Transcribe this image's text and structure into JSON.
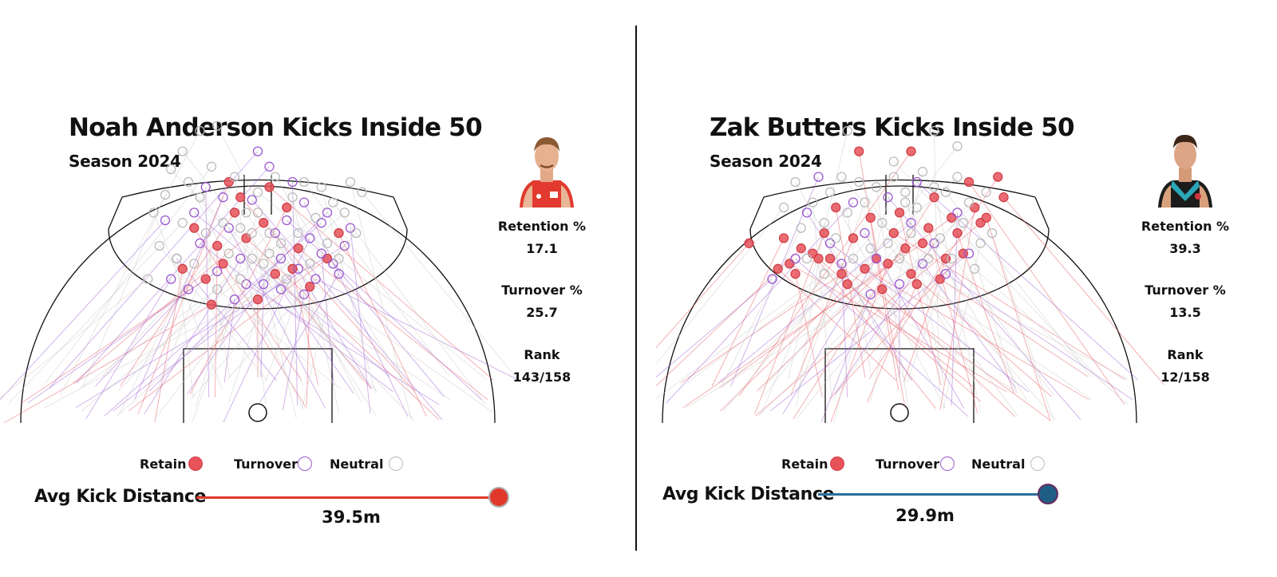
{
  "chart_data": [
    {
      "type": "scatter",
      "title": "Noah Anderson Kicks Inside 50",
      "subtitle": "Season 2024",
      "stats": [
        {
          "label": "Retention %",
          "value": "17.1"
        },
        {
          "label": "Turnover %",
          "value": "25.7"
        },
        {
          "label": "Rank",
          "value": "143/158"
        }
      ],
      "legend": [
        {
          "label": "Retain",
          "color": "#e8525a"
        },
        {
          "label": "Turnover",
          "color": "#9b59d0"
        },
        {
          "label": "Neutral",
          "color": "#bbbbbb"
        }
      ],
      "avg_kick_distance": {
        "label": "Avg Kick Distance",
        "value_m": 39.5,
        "display": "39.5m",
        "color": "#e0392b"
      },
      "series": [
        {
          "name": "Retain",
          "points": [
            [
              -8,
              12
            ],
            [
              -6,
              28
            ],
            [
              -4,
              48
            ],
            [
              -3,
              54
            ],
            [
              -7,
              35
            ],
            [
              -9,
              22
            ],
            [
              -11,
              42
            ],
            [
              -5,
              60
            ],
            [
              -2,
              38
            ],
            [
              0,
              14
            ],
            [
              1,
              44
            ],
            [
              3,
              24
            ],
            [
              5,
              50
            ],
            [
              7,
              34
            ],
            [
              9,
              19
            ],
            [
              12,
              30
            ],
            [
              14,
              40
            ],
            [
              -13,
              26
            ],
            [
              2,
              58
            ],
            [
              6,
              26
            ]
          ]
        },
        {
          "name": "Turnover",
          "points": [
            [
              -16,
              45
            ],
            [
              -14,
              30
            ],
            [
              -12,
              18
            ],
            [
              -10,
              36
            ],
            [
              -9,
              58
            ],
            [
              -7,
              25
            ],
            [
              -5,
              42
            ],
            [
              -3,
              30
            ],
            [
              -1,
              53
            ],
            [
              1,
              20
            ],
            [
              2,
              66
            ],
            [
              3,
              40
            ],
            [
              4,
              30
            ],
            [
              5,
              45
            ],
            [
              6,
              60
            ],
            [
              7,
              26
            ],
            [
              8,
              52
            ],
            [
              9,
              38
            ],
            [
              10,
              22
            ],
            [
              11,
              32
            ],
            [
              12,
              48
            ],
            [
              13,
              28
            ],
            [
              14,
              24
            ],
            [
              15,
              35
            ],
            [
              16,
              42
            ],
            [
              -15,
              22
            ],
            [
              -11,
              48
            ],
            [
              -4,
              14
            ],
            [
              0,
              72
            ],
            [
              4,
              18
            ],
            [
              -6,
              54
            ],
            [
              -2,
              20
            ],
            [
              8,
              16
            ],
            [
              11,
              44
            ]
          ]
        },
        {
          "name": "Neutral",
          "points": [
            [
              -19,
              22
            ],
            [
              -17,
              35
            ],
            [
              -16,
              55
            ],
            [
              -15,
              65
            ],
            [
              -14,
              30
            ],
            [
              -13,
              44
            ],
            [
              -12,
              60
            ],
            [
              -11,
              28
            ],
            [
              -10,
              54
            ],
            [
              -9,
              40
            ],
            [
              -8,
              66
            ],
            [
              -7,
              18
            ],
            [
              -6,
              44
            ],
            [
              -5,
              32
            ],
            [
              -4,
              62
            ],
            [
              -3,
              22
            ],
            [
              -2,
              48
            ],
            [
              -1,
              30
            ],
            [
              0,
              56
            ],
            [
              1,
              28
            ],
            [
              2,
              40
            ],
            [
              3,
              62
            ],
            [
              4,
              36
            ],
            [
              5,
              22
            ],
            [
              6,
              54
            ],
            [
              7,
              40
            ],
            [
              8,
              60
            ],
            [
              9,
              28
            ],
            [
              10,
              46
            ],
            [
              11,
              58
            ],
            [
              12,
              36
            ],
            [
              13,
              52
            ],
            [
              14,
              30
            ],
            [
              15,
              48
            ],
            [
              16,
              60
            ],
            [
              17,
              40
            ],
            [
              18,
              56
            ],
            [
              -18,
              48
            ],
            [
              -10,
              80
            ],
            [
              -7,
              82
            ],
            [
              0,
              48
            ],
            [
              2,
              32
            ],
            [
              -1,
              40
            ],
            [
              -3,
              42
            ],
            [
              -13,
              72
            ]
          ]
        }
      ]
    },
    {
      "type": "scatter",
      "title": "Zak Butters Kicks Inside 50",
      "subtitle": "Season 2024",
      "stats": [
        {
          "label": "Retention %",
          "value": "39.3"
        },
        {
          "label": "Turnover %",
          "value": "13.5"
        },
        {
          "label": "Rank",
          "value": "12/158"
        }
      ],
      "legend": [
        {
          "label": "Retain",
          "color": "#e8525a"
        },
        {
          "label": "Turnover",
          "color": "#9b59d0"
        },
        {
          "label": "Neutral",
          "color": "#bbbbbb"
        }
      ],
      "avg_kick_distance": {
        "label": "Avg Kick Distance",
        "value_m": 29.9,
        "display": "29.9m",
        "color": "#1f5f86"
      },
      "series": [
        {
          "name": "Retain",
          "points": [
            [
              -26,
              36
            ],
            [
              -21,
              26
            ],
            [
              -20,
              38
            ],
            [
              -19,
              28
            ],
            [
              -18,
              24
            ],
            [
              -17,
              34
            ],
            [
              -15,
              32
            ],
            [
              -13,
              40
            ],
            [
              -12,
              30
            ],
            [
              -11,
              50
            ],
            [
              -10,
              24
            ],
            [
              -9,
              20
            ],
            [
              -8,
              38
            ],
            [
              -6,
              26
            ],
            [
              -5,
              46
            ],
            [
              -4,
              30
            ],
            [
              -3,
              18
            ],
            [
              -2,
              28
            ],
            [
              -1,
              40
            ],
            [
              0,
              48
            ],
            [
              1,
              34
            ],
            [
              2,
              24
            ],
            [
              3,
              20
            ],
            [
              4,
              36
            ],
            [
              5,
              42
            ],
            [
              6,
              54
            ],
            [
              7,
              22
            ],
            [
              8,
              30
            ],
            [
              9,
              46
            ],
            [
              10,
              40
            ],
            [
              11,
              32
            ],
            [
              12,
              60
            ],
            [
              13,
              50
            ],
            [
              14,
              44
            ],
            [
              15,
              46
            ],
            [
              17,
              62
            ],
            [
              18,
              54
            ],
            [
              -7,
              72
            ],
            [
              2,
              72
            ],
            [
              -14,
              30
            ]
          ]
        },
        {
          "name": "Turnover",
          "points": [
            [
              -22,
              22
            ],
            [
              -16,
              48
            ],
            [
              -14,
              62
            ],
            [
              -12,
              36
            ],
            [
              -10,
              28
            ],
            [
              -8,
              52
            ],
            [
              -6,
              40
            ],
            [
              -4,
              30
            ],
            [
              -2,
              54
            ],
            [
              0,
              20
            ],
            [
              2,
              44
            ],
            [
              4,
              28
            ],
            [
              6,
              36
            ],
            [
              8,
              24
            ],
            [
              10,
              48
            ],
            [
              12,
              32
            ],
            [
              -18,
              30
            ],
            [
              -5,
              16
            ],
            [
              3,
              60
            ]
          ]
        },
        {
          "name": "Neutral",
          "points": [
            [
              -20,
              50
            ],
            [
              -18,
              60
            ],
            [
              -17,
              42
            ],
            [
              -16,
              30
            ],
            [
              -15,
              52
            ],
            [
              -13,
              24
            ],
            [
              -12,
              56
            ],
            [
              -11,
              38
            ],
            [
              -10,
              62
            ],
            [
              -9,
              48
            ],
            [
              -8,
              30
            ],
            [
              -7,
              60
            ],
            [
              -6,
              52
            ],
            [
              -5,
              34
            ],
            [
              -4,
              58
            ],
            [
              -3,
              44
            ],
            [
              -2,
              36
            ],
            [
              -1,
              62
            ],
            [
              0,
              30
            ],
            [
              1,
              56
            ],
            [
              2,
              40
            ],
            [
              3,
              50
            ],
            [
              4,
              64
            ],
            [
              5,
              30
            ],
            [
              6,
              58
            ],
            [
              7,
              38
            ],
            [
              8,
              56
            ],
            [
              9,
              30
            ],
            [
              10,
              62
            ],
            [
              11,
              44
            ],
            [
              12,
              52
            ],
            [
              13,
              26
            ],
            [
              14,
              36
            ],
            [
              15,
              56
            ],
            [
              16,
              40
            ],
            [
              -9,
              80
            ],
            [
              -1,
              68
            ],
            [
              6,
              80
            ],
            [
              10,
              74
            ],
            [
              1,
              52
            ],
            [
              -13,
              44
            ]
          ]
        }
      ]
    }
  ]
}
